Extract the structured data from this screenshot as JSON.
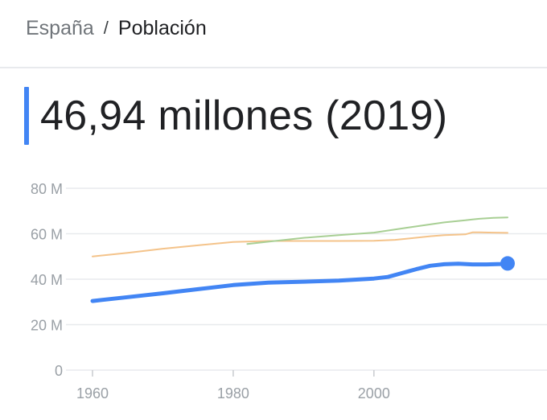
{
  "breadcrumb": {
    "country": "España",
    "separator": "/",
    "topic": "Población"
  },
  "headline": {
    "value": "46,94 millones (2019)"
  },
  "colors": {
    "primary_series": "#4285f4",
    "comparison_1": "#f4c38a",
    "comparison_2": "#a8cf94",
    "grid": "#e8eaed",
    "axis_text": "#9aa0a6"
  },
  "chart_data": {
    "type": "line",
    "title": "",
    "xlabel": "",
    "ylabel": "",
    "xlim": [
      1960,
      2019
    ],
    "ylim": [
      0,
      80
    ],
    "y_ticks": [
      {
        "value": 0,
        "label": "0"
      },
      {
        "value": 20,
        "label": "20 M"
      },
      {
        "value": 40,
        "label": "40 M"
      },
      {
        "value": 60,
        "label": "60 M"
      },
      {
        "value": 80,
        "label": "80 M"
      }
    ],
    "x_ticks": [
      {
        "value": 1960,
        "label": "1960"
      },
      {
        "value": 1980,
        "label": "1980"
      },
      {
        "value": 2000,
        "label": "2000"
      }
    ],
    "grid": true,
    "legend": "none",
    "series": [
      {
        "color": "#f4c38a",
        "width": 2,
        "x": [
          1960,
          1965,
          1970,
          1975,
          1980,
          1985,
          1990,
          1995,
          2000,
          2003,
          2005,
          2008,
          2010,
          2013,
          2014,
          2015,
          2017,
          2019
        ],
        "y": [
          50.0,
          51.6,
          53.4,
          54.9,
          56.4,
          56.8,
          56.8,
          56.8,
          56.9,
          57.3,
          57.9,
          58.9,
          59.4,
          59.7,
          60.6,
          60.6,
          60.5,
          60.4
        ]
      },
      {
        "color": "#a8cf94",
        "width": 2,
        "x": [
          1982,
          1985,
          1990,
          1995,
          2000,
          2005,
          2010,
          2013,
          2014,
          2015,
          2017,
          2019
        ],
        "y": [
          55.5,
          56.5,
          58.2,
          59.4,
          60.5,
          62.8,
          65.0,
          65.9,
          66.3,
          66.6,
          67.0,
          67.2
        ],
        "start_year": 1982
      },
      {
        "color": "#4285f4",
        "width": 5,
        "x": [
          1960,
          1965,
          1970,
          1975,
          1980,
          1985,
          1990,
          1995,
          2000,
          2002,
          2004,
          2006,
          2008,
          2010,
          2012,
          2014,
          2016,
          2018,
          2019
        ],
        "y": [
          30.4,
          32.1,
          33.8,
          35.6,
          37.4,
          38.5,
          38.9,
          39.4,
          40.3,
          41.0,
          42.7,
          44.4,
          45.9,
          46.6,
          46.8,
          46.5,
          46.5,
          46.7,
          46.94
        ],
        "endpoint_marker": true
      }
    ]
  }
}
